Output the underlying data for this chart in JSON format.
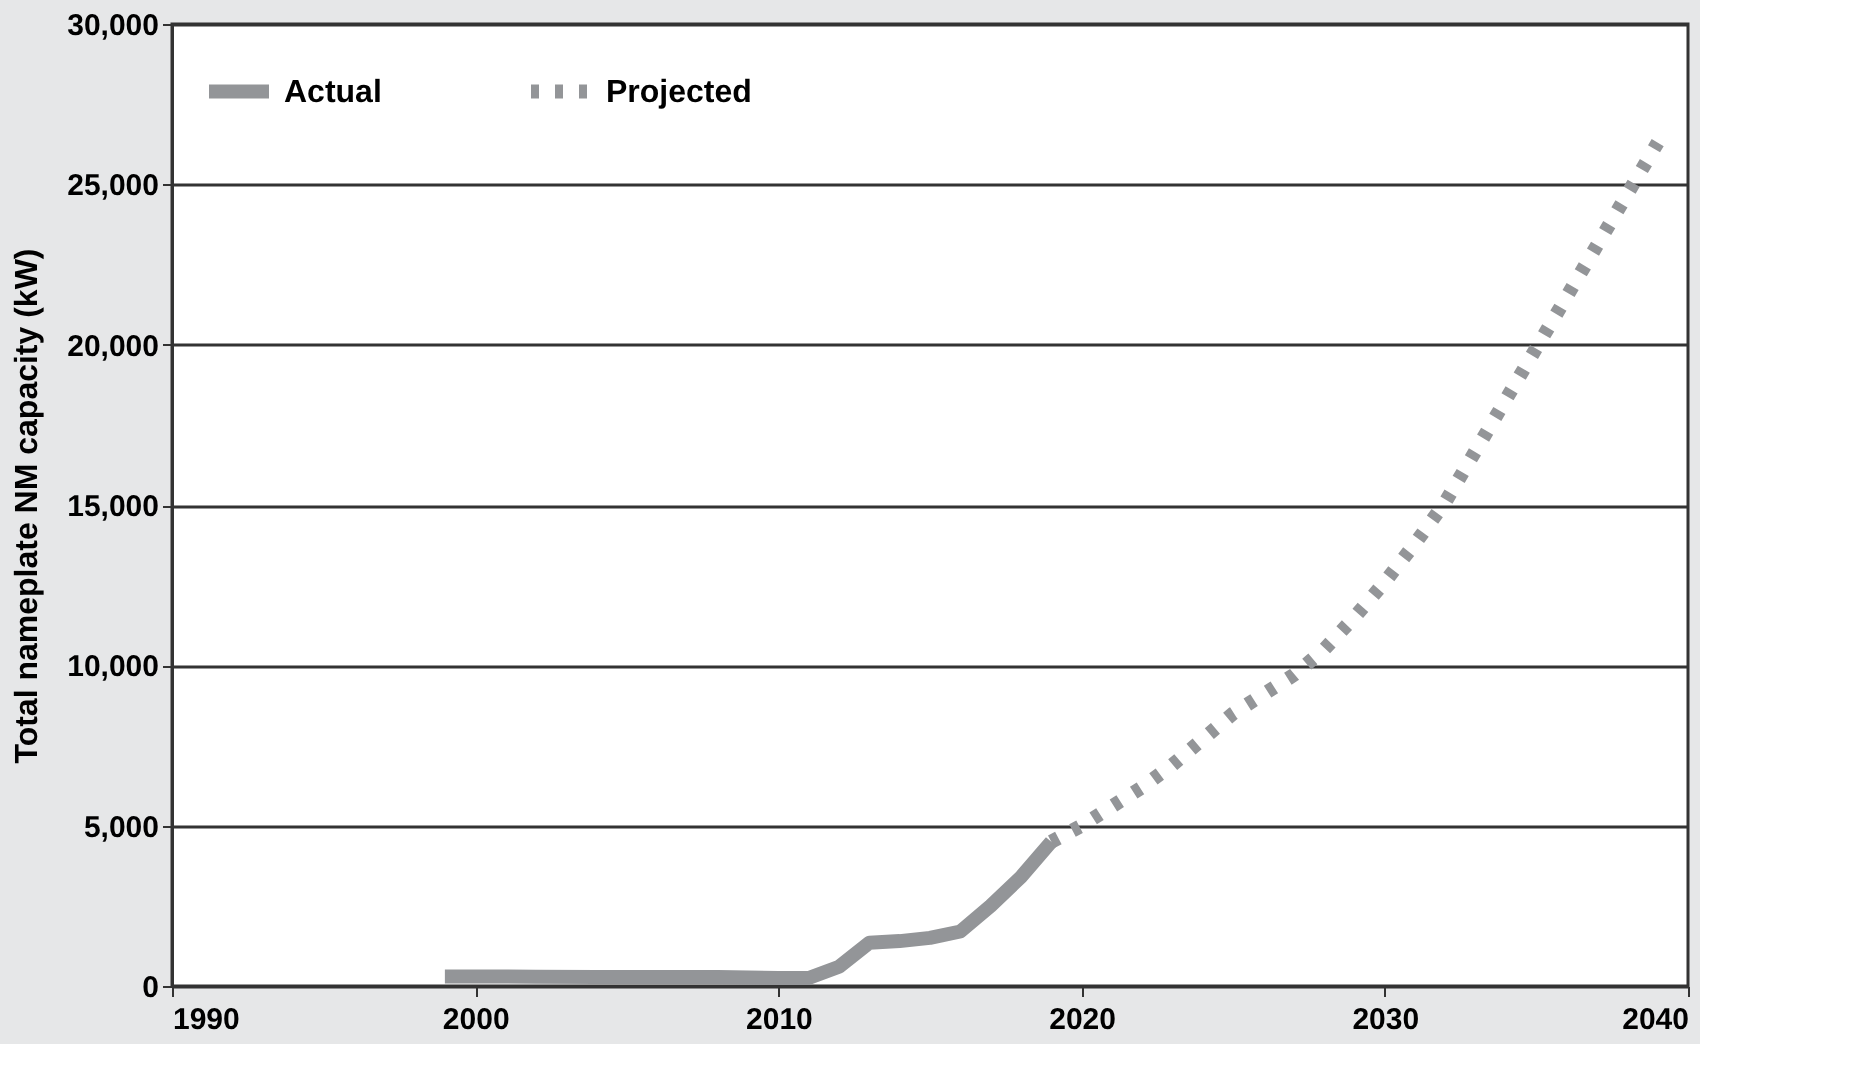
{
  "chart_data": {
    "type": "line",
    "ylabel": "Total nameplate NM capacity (kW)",
    "xlim": [
      1990,
      2040
    ],
    "xticks": [
      1990,
      2000,
      2010,
      2020,
      2030,
      2040
    ],
    "ylim": [
      0,
      30000
    ],
    "yticks": [
      0,
      {
        "value": 5000,
        "label": "5,000"
      },
      {
        "value": 10000,
        "label": "10,000"
      },
      {
        "value": 15000,
        "label": "15,000"
      },
      {
        "value": 20000,
        "label": "20,000"
      },
      {
        "value": 25000,
        "label": "25,000"
      },
      {
        "value": 30000,
        "label": "30,000"
      }
    ],
    "grid": "y",
    "legend": "top left",
    "marker": "none",
    "series": [
      {
        "name": "Actual",
        "color": "#939598",
        "line_style": "solid",
        "x": [
          1999,
          2000,
          2002,
          2004,
          2006,
          2008,
          2010,
          2011,
          2012,
          2013,
          2014,
          2015,
          2016,
          2017,
          2018,
          2019
        ],
        "values": [
          300,
          300,
          290,
          280,
          280,
          280,
          250,
          250,
          600,
          1350,
          1400,
          1500,
          1700,
          2500,
          3400,
          4500
        ]
      },
      {
        "name": "Projected",
        "color": "#939598",
        "line_style": "dotted",
        "x": [
          2019,
          2020,
          2021,
          2022,
          2023,
          2024,
          2025,
          2026,
          2027,
          2028,
          2029,
          2030,
          2031,
          2032,
          2033,
          2034,
          2035,
          2036,
          2037,
          2038,
          2039
        ],
        "values": [
          4500,
          5000,
          5600,
          6200,
          6900,
          7700,
          8500,
          9100,
          9700,
          10500,
          11500,
          12600,
          13800,
          15100,
          16700,
          18300,
          19900,
          21500,
          23100,
          24700,
          26300
        ]
      }
    ]
  }
}
